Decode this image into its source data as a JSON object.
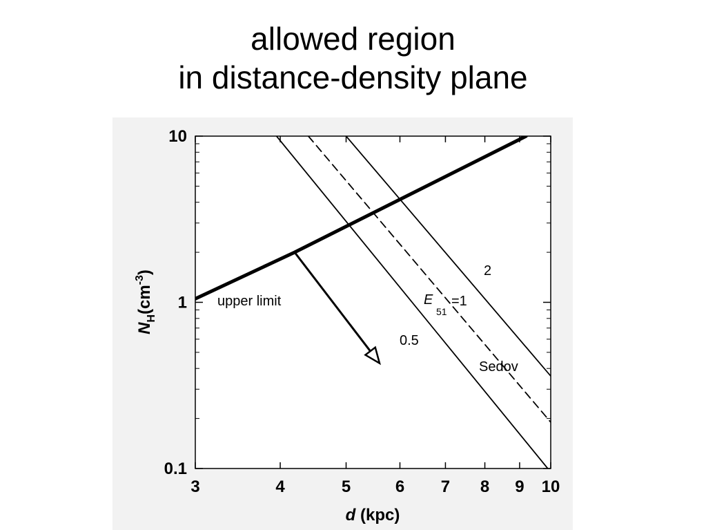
{
  "slide": {
    "title_line1": "allowed region",
    "title_line2": "in distance-density plane"
  },
  "chart_data": {
    "type": "line",
    "xlabel_var": "d",
    "xlabel_unit": " (kpc)",
    "ylabel_var": "N",
    "ylabel_sub": "H",
    "ylabel_unit": "(cm",
    "ylabel_exp": "-3",
    "ylabel_close": ")",
    "x_scale": "log",
    "y_scale": "log",
    "xlim": [
      3,
      10
    ],
    "ylim": [
      0.1,
      10
    ],
    "x_ticks": [
      3,
      4,
      5,
      6,
      7,
      8,
      9,
      10
    ],
    "y_ticks": [
      0.1,
      1,
      10
    ],
    "x_tick_labels": [
      "3",
      "4",
      "5",
      "6",
      "7",
      "8",
      "9",
      "10"
    ],
    "y_tick_labels": [
      "0.1",
      "1",
      "10"
    ],
    "series": [
      {
        "name": "upper limit",
        "style": "thick-solid",
        "x": [
          3,
          4.2,
          9.2
        ],
        "y": [
          1.05,
          2.0,
          10
        ]
      },
      {
        "name": "0.5",
        "style": "solid",
        "x": [
          3.95,
          9.9
        ],
        "y": [
          10,
          0.1
        ]
      },
      {
        "name": "E51 = 1",
        "style": "dashed",
        "x": [
          4.4,
          10
        ],
        "y": [
          10,
          0.19
        ]
      },
      {
        "name": "2",
        "style": "solid",
        "x": [
          5.0,
          10
        ],
        "y": [
          10,
          0.36
        ]
      }
    ],
    "annotations": {
      "upper_limit": "upper limit",
      "e_var": "E",
      "e_sub": "51",
      "e_eq": "=1",
      "label_half": "0.5",
      "label_two": "2",
      "sedov": "Sedov"
    },
    "arrow": {
      "from": [
        4.2,
        2.0
      ],
      "to": [
        5.6,
        0.43
      ]
    },
    "colors": {
      "panel_bg": "#f2f2f2",
      "plot_bg": "#ffffff",
      "ink": "#000000"
    }
  }
}
